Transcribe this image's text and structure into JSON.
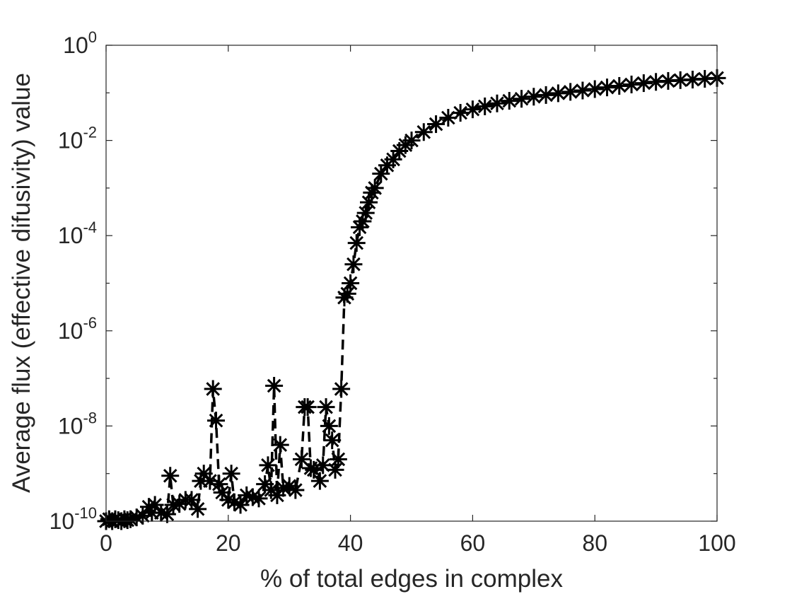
{
  "chart_data": {
    "type": "line",
    "title": "",
    "xlabel": "% of total edges in complex",
    "ylabel": "Average flux (effective difusivity) value",
    "x_ticks": [
      "0",
      "20",
      "40",
      "60",
      "80",
      "100"
    ],
    "y_ticks": [
      {
        "base": "10",
        "exp": "0",
        "value": 1
      },
      {
        "base": "10",
        "exp": "-2",
        "value": 0.01
      },
      {
        "base": "10",
        "exp": "-4",
        "value": 0.0001
      },
      {
        "base": "10",
        "exp": "-6",
        "value": 1e-06
      },
      {
        "base": "10",
        "exp": "-8",
        "value": 1e-08
      },
      {
        "base": "10",
        "exp": "-10",
        "value": 1e-10
      }
    ],
    "xlim": [
      0,
      100
    ],
    "ylim": [
      1e-10,
      1
    ],
    "yscale": "log",
    "grid": false,
    "legend": "none",
    "series": [
      {
        "line_style": "dashed",
        "marker": "asterisk",
        "color": "#000000",
        "x": [
          0,
          0.5,
          1,
          1.5,
          2,
          2.5,
          3,
          3.5,
          4,
          5,
          6,
          7,
          7.5,
          8,
          9,
          10,
          10.5,
          11,
          12,
          13,
          14,
          15,
          15.5,
          16,
          17,
          17.5,
          18,
          18.5,
          19,
          20,
          20.5,
          21,
          22,
          23,
          24,
          25,
          26,
          26.5,
          27,
          27.5,
          28,
          28.5,
          29,
          30,
          31,
          32,
          32.5,
          33,
          33.5,
          34,
          35,
          35.5,
          36,
          36.5,
          37,
          37.5,
          38,
          38.5,
          39,
          39.5,
          40,
          40.5,
          41,
          41.5,
          42,
          42.5,
          43,
          43.5,
          44,
          45,
          46,
          47,
          48,
          49,
          50,
          52,
          54,
          56,
          58,
          60,
          62,
          64,
          66,
          68,
          70,
          72,
          74,
          76,
          78,
          80,
          82,
          84,
          86,
          88,
          90,
          92,
          94,
          96,
          98,
          100
        ],
        "y": [
          1e-10,
          1.1e-10,
          1e-10,
          1.1e-10,
          1.05e-10,
          1e-10,
          1.1e-10,
          1.05e-10,
          1.1e-10,
          1.2e-10,
          1.3e-10,
          2e-10,
          1.5e-10,
          2.2e-10,
          1.5e-10,
          1.4e-10,
          9e-10,
          2.2e-10,
          2.3e-10,
          2.8e-10,
          2.8e-10,
          1.8e-10,
          7e-10,
          1e-09,
          7e-10,
          6e-08,
          1.3e-08,
          6e-10,
          4e-10,
          2.8e-10,
          1e-09,
          2.5e-10,
          2.2e-10,
          3.5e-10,
          3.2e-10,
          3e-10,
          6e-10,
          1.5e-09,
          4.5e-10,
          7e-08,
          3.5e-10,
          4e-09,
          5e-10,
          5.5e-10,
          4.5e-10,
          2e-09,
          2.5e-08,
          2.5e-08,
          1.3e-09,
          1.2e-09,
          7e-10,
          1.5e-09,
          2.5e-08,
          1e-08,
          5e-09,
          1.2e-09,
          2e-09,
          6e-08,
          5e-06,
          6e-06,
          1e-05,
          2.5e-05,
          7e-05,
          0.00015,
          0.0002,
          0.0003,
          0.0005,
          0.0008,
          0.001,
          0.002,
          0.003,
          0.004,
          0.006,
          0.008,
          0.01,
          0.015,
          0.022,
          0.03,
          0.038,
          0.045,
          0.052,
          0.06,
          0.068,
          0.075,
          0.083,
          0.09,
          0.098,
          0.105,
          0.112,
          0.12,
          0.13,
          0.14,
          0.15,
          0.16,
          0.17,
          0.178,
          0.185,
          0.19,
          0.197,
          0.205
        ]
      }
    ]
  }
}
